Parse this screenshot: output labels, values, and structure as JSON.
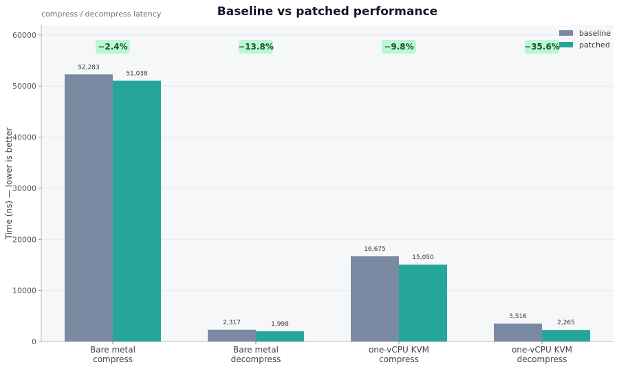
{
  "chart_data": {
    "type": "bar",
    "title": "Baseline vs patched performance",
    "subtitle": "compress / decompress latency",
    "ylabel": "Time (ns)  — lower is better",
    "xlabel": "",
    "ylim": [
      0,
      62000
    ],
    "yticks": [
      "0",
      "10000",
      "20000",
      "30000",
      "40000",
      "50000",
      "60000"
    ],
    "categories": [
      [
        "Bare metal",
        "compress"
      ],
      [
        "Bare metal",
        "decompress"
      ],
      [
        "one-vCPU KVM",
        "compress"
      ],
      [
        "one-vCPU KVM",
        "decompress"
      ]
    ],
    "series": [
      {
        "name": "baseline",
        "color": "#7a8aa3",
        "values": [
          52283,
          2317,
          16675,
          3516
        ],
        "labels": [
          "52,283",
          "2,317",
          "16,675",
          "3,516"
        ]
      },
      {
        "name": "patched",
        "color": "#26a69a",
        "values": [
          51038,
          1998,
          15050,
          2265
        ],
        "labels": [
          "51,038",
          "1,998",
          "15,050",
          "2,265"
        ]
      }
    ],
    "deltas": [
      "−2.4%",
      "−13.8%",
      "−9.8%",
      "−35.6%"
    ],
    "legend_position": "top-right",
    "grid": true,
    "colors": {
      "plot_bg": "#f6f7f9",
      "grid": "#e5e7eb",
      "delta_bg": "#bbf7d0"
    }
  }
}
